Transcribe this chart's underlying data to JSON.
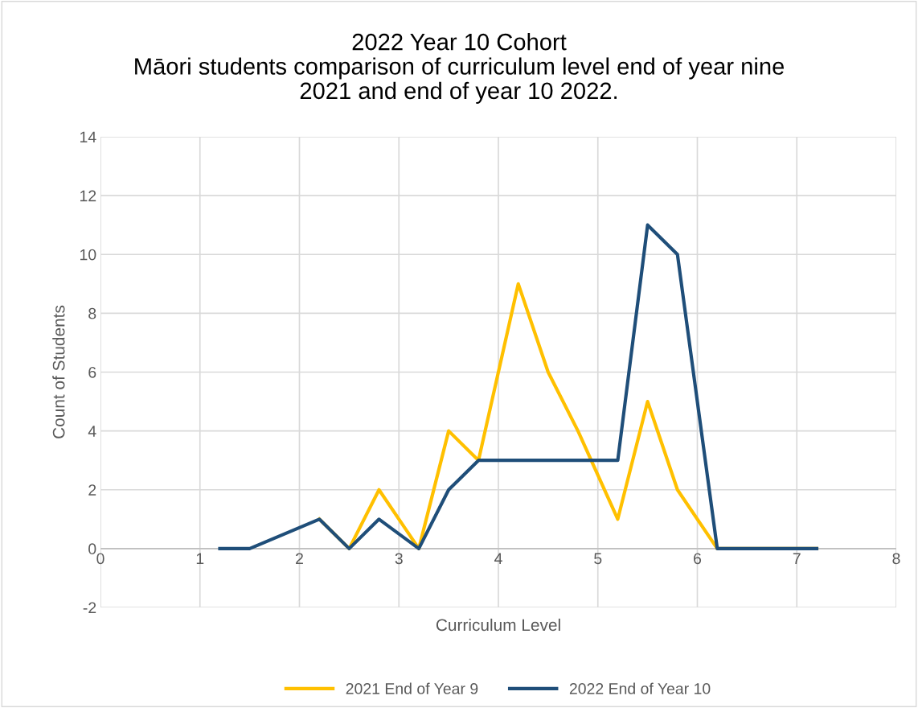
{
  "chart_data": {
    "type": "line",
    "title": "2022 Year 10 Cohort\nMāori students comparison of curriculum level end of year nine\n2021 and end of year 10 2022.",
    "xlabel": "Curriculum Level",
    "ylabel": "Count of Students",
    "x": [
      1.2,
      1.5,
      2.2,
      2.5,
      2.8,
      3.2,
      3.5,
      3.8,
      4.2,
      4.5,
      4.8,
      5.2,
      5.5,
      5.8,
      6.2,
      6.5,
      7.2
    ],
    "series": [
      {
        "name": "2021 End of Year 9",
        "color": "#ffc000",
        "values": [
          null,
          null,
          1,
          0,
          2,
          0,
          4,
          3,
          9,
          6,
          4,
          1,
          5,
          2,
          0,
          0,
          0
        ]
      },
      {
        "name": "2022 End of Year 10",
        "color": "#1f4e79",
        "values": [
          0,
          0,
          1,
          0,
          1,
          0,
          2,
          3,
          3,
          3,
          3,
          3,
          11,
          10,
          0,
          0,
          0
        ]
      }
    ],
    "xlim": [
      0,
      8
    ],
    "xticks": [
      0,
      1,
      2,
      3,
      4,
      5,
      6,
      7,
      8
    ],
    "ylim": [
      -2,
      14
    ],
    "yticks": [
      -2,
      0,
      2,
      4,
      6,
      8,
      10,
      12,
      14
    ],
    "grid": true,
    "legend": "bottom",
    "marker": "none",
    "line_style": "solid"
  }
}
